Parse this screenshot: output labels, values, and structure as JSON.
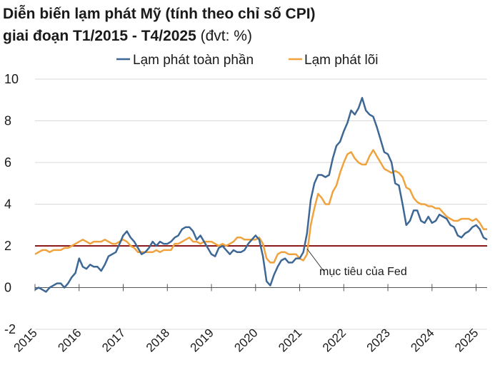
{
  "title": {
    "line1": "Diễn biến lạm phát Mỹ (tính theo chỉ số CPI)",
    "line2_main": "giai đoạn T1/2015 - T4/2025",
    "line2_unit": " (đvt: %)"
  },
  "colors": {
    "headline": "#3d6794",
    "core": "#f0a23c",
    "fed": "#8b1a1a",
    "grid": "#d9d9d9",
    "axis": "#555555"
  },
  "chart_data": {
    "type": "line",
    "x_start": "2015-01",
    "x_end": "2025-04",
    "x_ticks": [
      "2015",
      "2016",
      "2017",
      "2018",
      "2019",
      "2020",
      "2021",
      "2022",
      "2023",
      "2024",
      "2025"
    ],
    "y_ticks": [
      "-2",
      "0",
      "2",
      "4",
      "6",
      "8",
      "10"
    ],
    "ylim": [
      -2,
      10
    ],
    "grid": "horizontal",
    "legend_position": "top",
    "series": [
      {
        "name": "Lạm phát toàn phần",
        "color": "#3d6794",
        "values": [
          -0.1,
          0.0,
          -0.1,
          -0.2,
          0.0,
          0.1,
          0.2,
          0.2,
          0.0,
          0.2,
          0.5,
          0.7,
          1.4,
          1.0,
          0.9,
          1.1,
          1.0,
          1.0,
          0.8,
          1.1,
          1.5,
          1.6,
          1.7,
          2.1,
          2.5,
          2.7,
          2.4,
          2.2,
          1.9,
          1.6,
          1.7,
          1.9,
          2.2,
          2.0,
          2.2,
          2.1,
          2.1,
          2.2,
          2.4,
          2.5,
          2.8,
          2.9,
          2.9,
          2.7,
          2.3,
          2.5,
          2.2,
          1.9,
          1.6,
          1.5,
          1.9,
          2.0,
          1.8,
          1.6,
          1.8,
          1.7,
          1.7,
          1.8,
          2.1,
          2.3,
          2.5,
          2.3,
          1.5,
          0.3,
          0.1,
          0.6,
          1.0,
          1.3,
          1.4,
          1.2,
          1.2,
          1.4,
          1.4,
          1.7,
          2.6,
          4.2,
          5.0,
          5.4,
          5.4,
          5.3,
          5.4,
          6.2,
          6.8,
          7.0,
          7.5,
          7.9,
          8.5,
          8.3,
          8.6,
          9.1,
          8.5,
          8.3,
          8.2,
          7.7,
          7.1,
          6.5,
          6.4,
          6.0,
          5.0,
          4.9,
          4.0,
          3.0,
          3.2,
          3.7,
          3.7,
          3.2,
          3.1,
          3.4,
          3.1,
          3.2,
          3.5,
          3.4,
          3.3,
          3.0,
          2.9,
          2.5,
          2.4,
          2.6,
          2.7,
          2.9,
          3.0,
          2.8,
          2.4,
          2.3
        ]
      },
      {
        "name": "Lạm phát lõi",
        "color": "#f0a23c",
        "values": [
          1.6,
          1.7,
          1.8,
          1.8,
          1.7,
          1.8,
          1.8,
          1.8,
          1.9,
          1.9,
          2.0,
          2.1,
          2.2,
          2.3,
          2.2,
          2.1,
          2.2,
          2.2,
          2.2,
          2.3,
          2.2,
          2.1,
          2.1,
          2.2,
          2.3,
          2.2,
          2.0,
          1.9,
          1.7,
          1.7,
          1.7,
          1.7,
          1.7,
          1.8,
          1.7,
          1.8,
          1.8,
          1.8,
          2.1,
          2.1,
          2.2,
          2.3,
          2.4,
          2.2,
          2.2,
          2.1,
          2.2,
          2.2,
          2.2,
          2.1,
          2.0,
          2.1,
          2.0,
          2.1,
          2.2,
          2.4,
          2.4,
          2.3,
          2.3,
          2.3,
          2.3,
          2.4,
          2.1,
          1.4,
          1.2,
          1.2,
          1.6,
          1.7,
          1.7,
          1.6,
          1.6,
          1.6,
          1.4,
          1.3,
          1.6,
          3.0,
          3.8,
          4.5,
          4.3,
          4.0,
          4.0,
          4.6,
          4.9,
          5.5,
          6.0,
          6.4,
          6.5,
          6.2,
          6.0,
          5.9,
          5.9,
          6.3,
          6.6,
          6.3,
          6.0,
          5.7,
          5.6,
          5.5,
          5.6,
          5.5,
          5.3,
          4.8,
          4.7,
          4.3,
          4.1,
          4.0,
          4.0,
          3.9,
          3.9,
          3.8,
          3.8,
          3.6,
          3.4,
          3.3,
          3.2,
          3.2,
          3.3,
          3.3,
          3.3,
          3.2,
          3.3,
          3.1,
          2.8,
          2.8
        ]
      }
    ],
    "reference_line": {
      "value": 2,
      "label": "mục tiêu của Fed",
      "color": "#8b1a1a"
    }
  }
}
